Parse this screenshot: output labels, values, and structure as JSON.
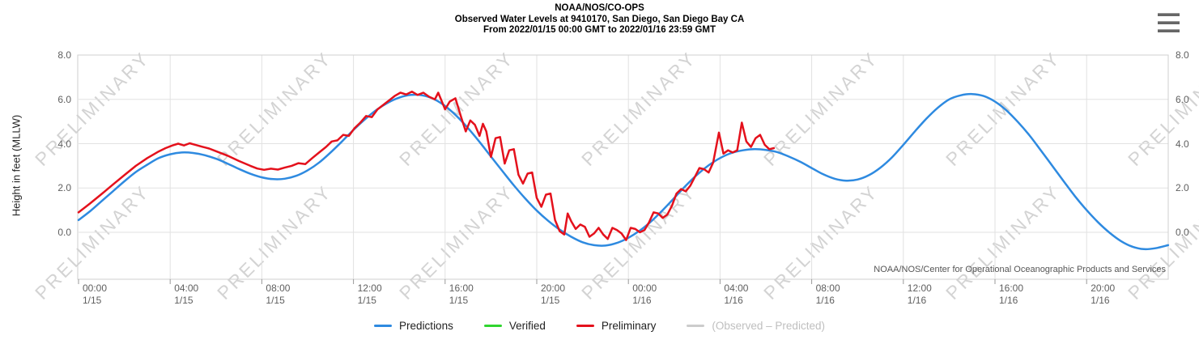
{
  "header": {
    "line1": "NOAA/NOS/CO-OPS",
    "line2": "Observed Water Levels at 9410170, San Diego, San Diego Bay CA",
    "line3": "From 2022/01/15 00:00 GMT to 2022/01/16 23:59 GMT"
  },
  "watermark": {
    "text": "PRELIMINARY"
  },
  "attribution": "NOAA/NOS/Center for Operational Oceanographic Products and Services",
  "axes": {
    "y_label": "Height in feet (MLLW)",
    "y_ticks": [
      {
        "label": "8.0",
        "value": 8
      },
      {
        "label": "6.0",
        "value": 6
      },
      {
        "label": "4.0",
        "value": 4
      },
      {
        "label": "2.0",
        "value": 2
      },
      {
        "label": "0.0",
        "value": 0
      }
    ],
    "x_ticks": [
      {
        "time": "00:00",
        "date": "1/15",
        "hour": 0
      },
      {
        "time": "04:00",
        "date": "1/15",
        "hour": 4
      },
      {
        "time": "08:00",
        "date": "1/15",
        "hour": 8
      },
      {
        "time": "12:00",
        "date": "1/15",
        "hour": 12
      },
      {
        "time": "16:00",
        "date": "1/15",
        "hour": 16
      },
      {
        "time": "20:00",
        "date": "1/15",
        "hour": 20
      },
      {
        "time": "00:00",
        "date": "1/16",
        "hour": 24
      },
      {
        "time": "04:00",
        "date": "1/16",
        "hour": 28
      },
      {
        "time": "08:00",
        "date": "1/16",
        "hour": 32
      },
      {
        "time": "12:00",
        "date": "1/16",
        "hour": 36
      },
      {
        "time": "16:00",
        "date": "1/16",
        "hour": 40
      },
      {
        "time": "20:00",
        "date": "1/16",
        "hour": 44
      }
    ]
  },
  "legend": [
    {
      "label": "Predictions",
      "color": "#2e8ae0",
      "dimmed": false
    },
    {
      "label": "Verified",
      "color": "#30d52f",
      "dimmed": false
    },
    {
      "label": "Preliminary",
      "color": "#e4111c",
      "dimmed": false
    },
    {
      "label": "(Observed – Predicted)",
      "color": "#cccccc",
      "dimmed": true
    }
  ],
  "chart_data": {
    "type": "line",
    "title": "NOAA/NOS/CO-OPS Observed Water Levels at 9410170, San Diego, San Diego Bay CA",
    "subtitle": "From 2022/01/15 00:00 GMT to 2022/01/16 23:59 GMT",
    "ylabel": "Height in feet (MLLW)",
    "ylim": [
      -2.1,
      8.2
    ],
    "xlim_hours": [
      0,
      47.56
    ],
    "x_unit": "hours since 2022/01/15 00:00 GMT",
    "grid": true,
    "legend_position": "bottom",
    "colors": {
      "grid": "#e2e2e2",
      "border": "#cfcfcf",
      "tick": "#999999"
    },
    "series": [
      {
        "name": "Predictions",
        "color": "#2e8ae0",
        "style": "smooth",
        "points": [
          [
            0,
            0.55
          ],
          [
            0.5,
            0.95
          ],
          [
            1,
            1.4
          ],
          [
            1.5,
            1.85
          ],
          [
            2,
            2.3
          ],
          [
            2.5,
            2.72
          ],
          [
            3,
            3.05
          ],
          [
            3.5,
            3.35
          ],
          [
            4,
            3.52
          ],
          [
            4.5,
            3.6
          ],
          [
            5,
            3.58
          ],
          [
            5.5,
            3.48
          ],
          [
            6,
            3.32
          ],
          [
            6.5,
            3.1
          ],
          [
            7,
            2.86
          ],
          [
            7.5,
            2.64
          ],
          [
            8,
            2.48
          ],
          [
            8.5,
            2.4
          ],
          [
            9,
            2.42
          ],
          [
            9.5,
            2.55
          ],
          [
            10,
            2.8
          ],
          [
            10.5,
            3.15
          ],
          [
            11,
            3.6
          ],
          [
            11.5,
            4.1
          ],
          [
            12,
            4.62
          ],
          [
            12.5,
            5.1
          ],
          [
            13,
            5.52
          ],
          [
            13.5,
            5.85
          ],
          [
            14,
            6.08
          ],
          [
            14.5,
            6.2
          ],
          [
            15,
            6.18
          ],
          [
            15.5,
            6.02
          ],
          [
            16,
            5.7
          ],
          [
            16.5,
            5.25
          ],
          [
            17,
            4.7
          ],
          [
            17.5,
            4.08
          ],
          [
            18,
            3.42
          ],
          [
            18.5,
            2.76
          ],
          [
            19,
            2.12
          ],
          [
            19.5,
            1.52
          ],
          [
            20,
            0.98
          ],
          [
            20.5,
            0.52
          ],
          [
            21,
            0.12
          ],
          [
            21.5,
            -0.2
          ],
          [
            22,
            -0.45
          ],
          [
            22.5,
            -0.58
          ],
          [
            23,
            -0.6
          ],
          [
            23.5,
            -0.48
          ],
          [
            24,
            -0.25
          ],
          [
            24.5,
            0.08
          ],
          [
            25,
            0.5
          ],
          [
            25.5,
            1.0
          ],
          [
            26,
            1.55
          ],
          [
            26.5,
            2.1
          ],
          [
            27,
            2.6
          ],
          [
            27.5,
            3.02
          ],
          [
            28,
            3.35
          ],
          [
            28.5,
            3.58
          ],
          [
            29,
            3.7
          ],
          [
            29.5,
            3.75
          ],
          [
            30,
            3.72
          ],
          [
            30.5,
            3.62
          ],
          [
            31,
            3.42
          ],
          [
            31.5,
            3.18
          ],
          [
            32,
            2.9
          ],
          [
            32.5,
            2.62
          ],
          [
            33,
            2.42
          ],
          [
            33.5,
            2.33
          ],
          [
            34,
            2.38
          ],
          [
            34.5,
            2.58
          ],
          [
            35,
            2.92
          ],
          [
            35.5,
            3.38
          ],
          [
            36,
            3.95
          ],
          [
            36.5,
            4.55
          ],
          [
            37,
            5.12
          ],
          [
            37.5,
            5.62
          ],
          [
            38,
            6.0
          ],
          [
            38.5,
            6.18
          ],
          [
            39,
            6.24
          ],
          [
            39.5,
            6.15
          ],
          [
            40,
            5.9
          ],
          [
            40.5,
            5.5
          ],
          [
            41,
            4.98
          ],
          [
            41.5,
            4.38
          ],
          [
            42,
            3.7
          ],
          [
            42.5,
            3.0
          ],
          [
            43,
            2.3
          ],
          [
            43.5,
            1.62
          ],
          [
            44,
            1.0
          ],
          [
            44.5,
            0.45
          ],
          [
            45,
            -0.02
          ],
          [
            45.5,
            -0.4
          ],
          [
            46,
            -0.65
          ],
          [
            46.5,
            -0.76
          ],
          [
            47,
            -0.72
          ],
          [
            47.56,
            -0.58
          ]
        ]
      },
      {
        "name": "Verified",
        "color": "#30d52f",
        "style": "smooth",
        "points": []
      },
      {
        "name": "Preliminary",
        "color": "#e4111c",
        "style": "jagged",
        "points": [
          [
            0,
            0.9
          ],
          [
            0.5,
            1.3
          ],
          [
            1,
            1.72
          ],
          [
            1.5,
            2.15
          ],
          [
            2,
            2.58
          ],
          [
            2.5,
            3.0
          ],
          [
            3,
            3.35
          ],
          [
            3.5,
            3.65
          ],
          [
            3.8,
            3.8
          ],
          [
            4.1,
            3.92
          ],
          [
            4.35,
            4.0
          ],
          [
            4.6,
            3.92
          ],
          [
            4.85,
            4.02
          ],
          [
            5.1,
            3.95
          ],
          [
            5.4,
            3.86
          ],
          [
            5.7,
            3.78
          ],
          [
            6,
            3.66
          ],
          [
            6.5,
            3.46
          ],
          [
            7,
            3.22
          ],
          [
            7.5,
            3.0
          ],
          [
            7.8,
            2.88
          ],
          [
            8.1,
            2.82
          ],
          [
            8.4,
            2.87
          ],
          [
            8.7,
            2.83
          ],
          [
            9,
            2.92
          ],
          [
            9.3,
            3.0
          ],
          [
            9.6,
            3.12
          ],
          [
            9.9,
            3.08
          ],
          [
            10.2,
            3.35
          ],
          [
            10.5,
            3.6
          ],
          [
            10.8,
            3.85
          ],
          [
            11.05,
            4.1
          ],
          [
            11.3,
            4.15
          ],
          [
            11.55,
            4.4
          ],
          [
            11.8,
            4.35
          ],
          [
            12.05,
            4.7
          ],
          [
            12.3,
            4.95
          ],
          [
            12.55,
            5.25
          ],
          [
            12.8,
            5.2
          ],
          [
            13.05,
            5.55
          ],
          [
            13.3,
            5.75
          ],
          [
            13.55,
            5.95
          ],
          [
            13.8,
            6.15
          ],
          [
            14.05,
            6.3
          ],
          [
            14.3,
            6.22
          ],
          [
            14.55,
            6.35
          ],
          [
            14.8,
            6.2
          ],
          [
            15.05,
            6.3
          ],
          [
            15.3,
            6.12
          ],
          [
            15.55,
            6.0
          ],
          [
            15.7,
            6.3
          ],
          [
            16,
            5.55
          ],
          [
            16.2,
            5.9
          ],
          [
            16.45,
            6.05
          ],
          [
            16.7,
            5.2
          ],
          [
            16.9,
            4.55
          ],
          [
            17.1,
            5.05
          ],
          [
            17.3,
            4.85
          ],
          [
            17.5,
            4.35
          ],
          [
            17.65,
            4.9
          ],
          [
            17.8,
            4.55
          ],
          [
            18,
            3.4
          ],
          [
            18.2,
            4.25
          ],
          [
            18.4,
            4.3
          ],
          [
            18.6,
            3.1
          ],
          [
            18.8,
            3.7
          ],
          [
            19,
            3.75
          ],
          [
            19.2,
            2.6
          ],
          [
            19.4,
            2.2
          ],
          [
            19.6,
            2.65
          ],
          [
            19.8,
            2.7
          ],
          [
            20,
            1.55
          ],
          [
            20.2,
            1.15
          ],
          [
            20.4,
            1.7
          ],
          [
            20.6,
            1.75
          ],
          [
            20.8,
            0.55
          ],
          [
            21,
            0.05
          ],
          [
            21.2,
            -0.1
          ],
          [
            21.35,
            0.85
          ],
          [
            21.5,
            0.5
          ],
          [
            21.7,
            0.15
          ],
          [
            21.9,
            0.35
          ],
          [
            22.1,
            0.25
          ],
          [
            22.3,
            -0.2
          ],
          [
            22.5,
            -0.05
          ],
          [
            22.7,
            0.2
          ],
          [
            22.9,
            -0.1
          ],
          [
            23.1,
            -0.3
          ],
          [
            23.3,
            0.2
          ],
          [
            23.5,
            0.1
          ],
          [
            23.7,
            -0.05
          ],
          [
            23.9,
            -0.35
          ],
          [
            24.1,
            0.2
          ],
          [
            24.3,
            0.15
          ],
          [
            24.5,
            0.0
          ],
          [
            24.7,
            0.1
          ],
          [
            24.9,
            0.45
          ],
          [
            25.1,
            0.9
          ],
          [
            25.3,
            0.85
          ],
          [
            25.5,
            0.65
          ],
          [
            25.7,
            0.8
          ],
          [
            25.9,
            1.2
          ],
          [
            26.1,
            1.75
          ],
          [
            26.3,
            1.95
          ],
          [
            26.5,
            1.85
          ],
          [
            26.7,
            2.1
          ],
          [
            26.9,
            2.5
          ],
          [
            27.1,
            2.9
          ],
          [
            27.3,
            2.85
          ],
          [
            27.5,
            2.7
          ],
          [
            27.7,
            3.15
          ],
          [
            27.95,
            4.5
          ],
          [
            28.15,
            3.55
          ],
          [
            28.35,
            3.7
          ],
          [
            28.55,
            3.6
          ],
          [
            28.75,
            3.7
          ],
          [
            28.95,
            4.95
          ],
          [
            29.15,
            4.1
          ],
          [
            29.35,
            3.85
          ],
          [
            29.55,
            4.25
          ],
          [
            29.75,
            4.4
          ],
          [
            29.95,
            3.95
          ],
          [
            30.15,
            3.75
          ],
          [
            30.35,
            3.8
          ]
        ]
      },
      {
        "name": "(Observed – Predicted)",
        "color": "#cccccc",
        "style": "smooth",
        "points": []
      }
    ]
  }
}
